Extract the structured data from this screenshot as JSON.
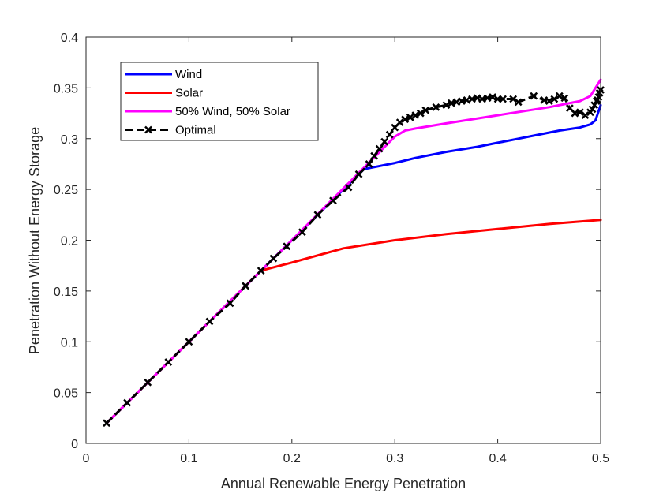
{
  "chart_data": {
    "type": "line",
    "title": "",
    "xlabel": "Annual Renewable Energy Penetration",
    "ylabel": "Penetration Without Energy Storage",
    "xlim": [
      0,
      0.5
    ],
    "ylim": [
      0,
      0.4
    ],
    "xticks": [
      "0",
      "0.1",
      "0.2",
      "0.3",
      "0.4",
      "0.5"
    ],
    "yticks": [
      "0",
      "0.05",
      "0.1",
      "0.15",
      "0.2",
      "0.25",
      "0.3",
      "0.35",
      "0.4"
    ],
    "grid": false,
    "legend_position": "top-left",
    "series": [
      {
        "name": "Wind",
        "color": "#0000ff",
        "style": "solid",
        "x": [
          0.02,
          0.1,
          0.2,
          0.27,
          0.28,
          0.3,
          0.32,
          0.35,
          0.38,
          0.4,
          0.42,
          0.44,
          0.46,
          0.48,
          0.49,
          0.495,
          0.5
        ],
        "y": [
          0.02,
          0.1,
          0.2,
          0.27,
          0.272,
          0.276,
          0.281,
          0.287,
          0.292,
          0.296,
          0.3,
          0.304,
          0.308,
          0.311,
          0.314,
          0.318,
          0.333
        ]
      },
      {
        "name": "Solar",
        "color": "#ff0000",
        "style": "solid",
        "x": [
          0.02,
          0.1,
          0.17,
          0.2,
          0.25,
          0.3,
          0.35,
          0.4,
          0.45,
          0.5
        ],
        "y": [
          0.02,
          0.1,
          0.17,
          0.178,
          0.192,
          0.2,
          0.206,
          0.211,
          0.216,
          0.22
        ]
      },
      {
        "name": "50% Wind, 50% Solar",
        "color": "#ff00ff",
        "style": "solid",
        "x": [
          0.02,
          0.1,
          0.2,
          0.3,
          0.31,
          0.32,
          0.35,
          0.4,
          0.45,
          0.48,
          0.49,
          0.5
        ],
        "y": [
          0.02,
          0.1,
          0.2,
          0.302,
          0.308,
          0.31,
          0.315,
          0.323,
          0.331,
          0.337,
          0.342,
          0.358
        ]
      },
      {
        "name": "Optimal",
        "color": "#000000",
        "style": "dashed",
        "marker": "x",
        "x": [
          0.02,
          0.04,
          0.06,
          0.08,
          0.1,
          0.12,
          0.14,
          0.155,
          0.17,
          0.182,
          0.195,
          0.21,
          0.225,
          0.24,
          0.255,
          0.265,
          0.275,
          0.28,
          0.285,
          0.29,
          0.295,
          0.3,
          0.305,
          0.31,
          0.315,
          0.32,
          0.325,
          0.33,
          0.34,
          0.35,
          0.355,
          0.36,
          0.365,
          0.37,
          0.375,
          0.38,
          0.385,
          0.39,
          0.395,
          0.4,
          0.405,
          0.415,
          0.42,
          0.435,
          0.445,
          0.45,
          0.455,
          0.46,
          0.465,
          0.47,
          0.475,
          0.48,
          0.485,
          0.49,
          0.492,
          0.494,
          0.496,
          0.497,
          0.498,
          0.499,
          0.5
        ],
        "y": [
          0.02,
          0.04,
          0.06,
          0.08,
          0.1,
          0.12,
          0.138,
          0.155,
          0.17,
          0.182,
          0.194,
          0.208,
          0.225,
          0.239,
          0.252,
          0.265,
          0.275,
          0.283,
          0.29,
          0.297,
          0.304,
          0.311,
          0.316,
          0.319,
          0.321,
          0.323,
          0.325,
          0.328,
          0.331,
          0.333,
          0.335,
          0.336,
          0.337,
          0.338,
          0.339,
          0.34,
          0.339,
          0.34,
          0.341,
          0.339,
          0.339,
          0.339,
          0.336,
          0.342,
          0.338,
          0.337,
          0.339,
          0.342,
          0.34,
          0.33,
          0.325,
          0.326,
          0.323,
          0.326,
          0.329,
          0.333,
          0.337,
          0.338,
          0.341,
          0.345,
          0.348
        ]
      }
    ]
  }
}
